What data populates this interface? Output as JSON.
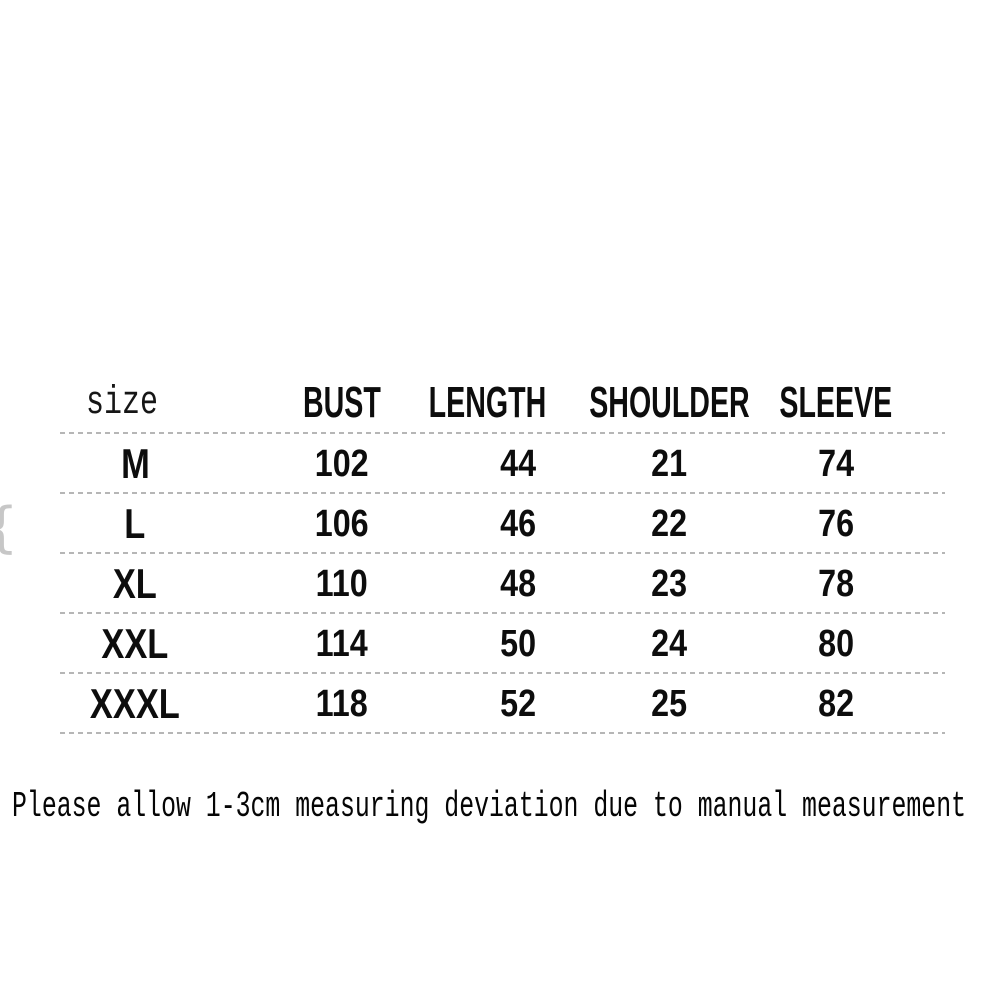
{
  "colors": {
    "background": "#ffffff",
    "text": "#0d0d0d",
    "separator_dots": "#a9a9a9"
  },
  "size_table": {
    "size_header": "size",
    "column_headers": [
      "BUST",
      "LENGTH",
      "SHOULDER",
      "SLEEVE"
    ],
    "rows": [
      {
        "size": "M",
        "bust": "102",
        "length": "44",
        "shoulder": "21",
        "sleeve": "74"
      },
      {
        "size": "L",
        "bust": "106",
        "length": "46",
        "shoulder": "22",
        "sleeve": "76"
      },
      {
        "size": "XL",
        "bust": "110",
        "length": "48",
        "shoulder": "23",
        "sleeve": "78"
      },
      {
        "size": "XXL",
        "bust": "114",
        "length": "50",
        "shoulder": "24",
        "sleeve": "80"
      },
      {
        "size": "XXXL",
        "bust": "118",
        "length": "52",
        "shoulder": "25",
        "sleeve": "82"
      }
    ]
  },
  "note": "Please allow 1-3cm measuring deviation due to manual measurement",
  "edge_artifact": "{",
  "chart_data": {
    "type": "table",
    "title": "",
    "columns": [
      "size",
      "BUST",
      "LENGTH",
      "SHOULDER",
      "SLEEVE"
    ],
    "rows": [
      [
        "M",
        102,
        44,
        21,
        74
      ],
      [
        "L",
        106,
        46,
        22,
        76
      ],
      [
        "XL",
        110,
        48,
        23,
        78
      ],
      [
        "XXL",
        114,
        50,
        24,
        80
      ],
      [
        "XXXL",
        118,
        52,
        25,
        82
      ]
    ],
    "note": "Please allow 1-3cm measuring deviation due to manual measurement",
    "layout": "dotted horizontal separators between rows, no vertical rules, black text on white"
  }
}
